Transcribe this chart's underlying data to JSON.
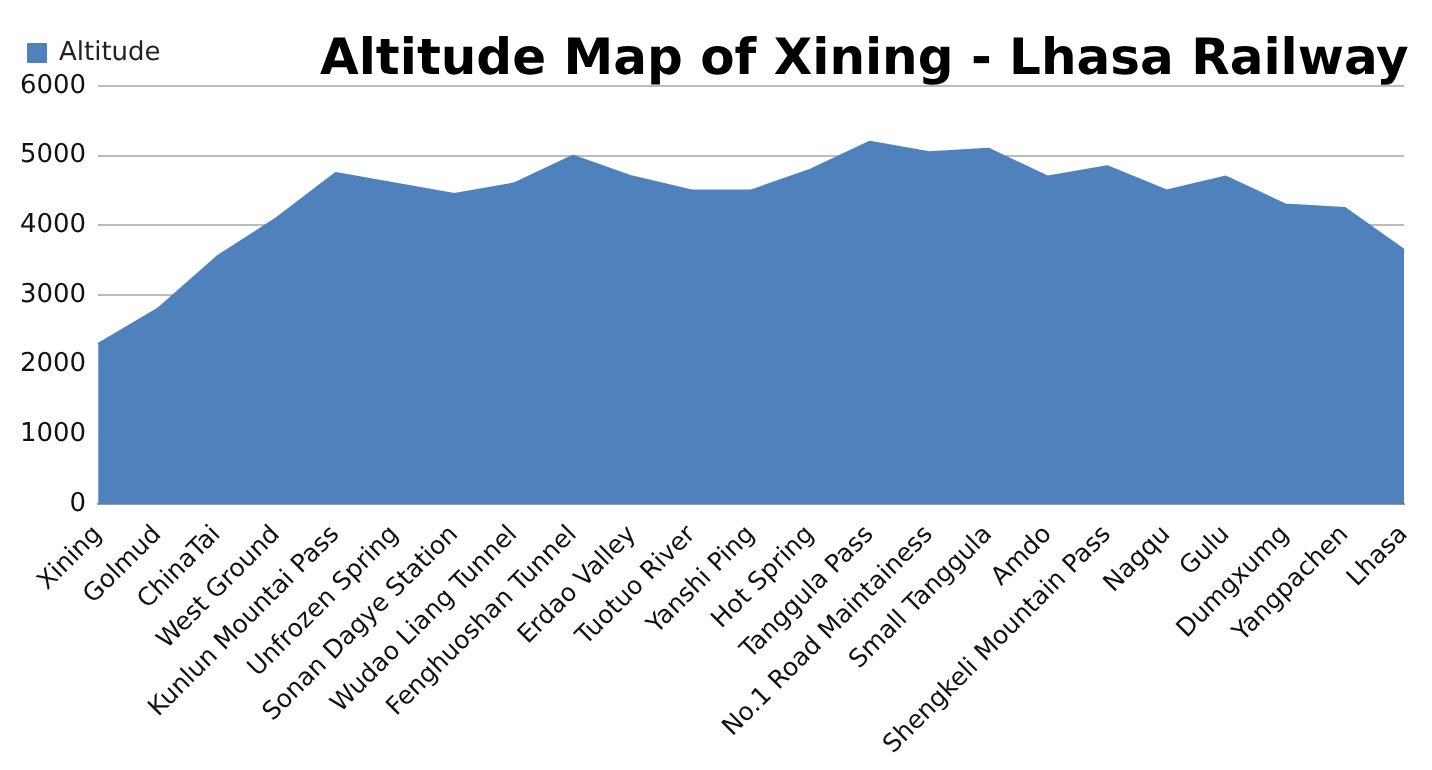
{
  "chart_data": {
    "type": "area",
    "title": "Altitude Map of Xining - Lhasa Railway",
    "categories": [
      "Xining",
      "Golmud",
      "ChinaTai",
      "West Ground",
      "Kunlun Mountai Pass",
      "Unfrozen Spring",
      "Sonan Dagye Station",
      "Wudao Liang Tunnel",
      "Fenghuoshan Tunnel",
      "Erdao Valley",
      "Tuotuo River",
      "Yanshi Ping",
      "Hot Spring",
      "Tanggula Pass",
      "No.1 Road Maintainess",
      "Small Tanggula",
      "Amdo",
      "Shengkeli Mountain Pass",
      "Nagqu",
      "Gulu",
      "Dumgxumg",
      "Yangpachen",
      "Lhasa"
    ],
    "series": [
      {
        "name": "Altitude",
        "color": "#4f81bd",
        "values": [
          2300,
          2800,
          3550,
          4100,
          4750,
          4600,
          4450,
          4600,
          5000,
          4700,
          4500,
          4500,
          4800,
          5200,
          5050,
          5100,
          4700,
          4850,
          4500,
          4700,
          4300,
          4250,
          3650
        ]
      }
    ],
    "ylim": [
      0,
      6000
    ],
    "yticks": [
      0,
      1000,
      2000,
      3000,
      4000,
      5000,
      6000
    ],
    "grid": "y",
    "legend": "top left",
    "marker": "none"
  }
}
